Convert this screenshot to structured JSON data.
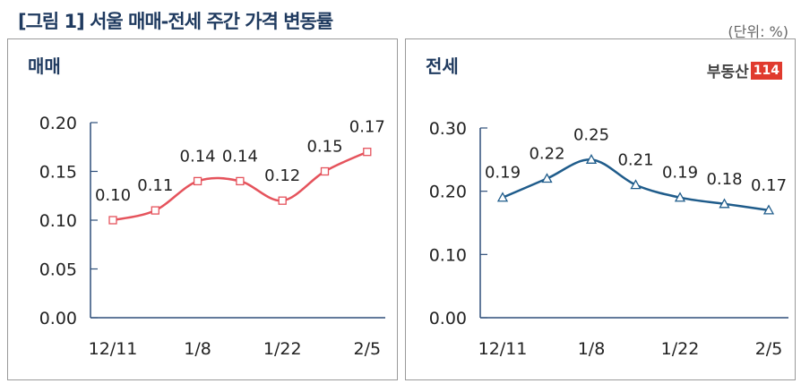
{
  "title": "[그림 1] 서울 매매-전세 주간 가격 변동률",
  "unit": "(단위: %)",
  "logo": {
    "text": "부동산",
    "number": "114"
  },
  "chart_data": [
    {
      "type": "line",
      "title": "매매",
      "x_labels": [
        "12/11",
        "",
        "1/8",
        "",
        "1/22",
        "",
        "2/5"
      ],
      "values": [
        0.1,
        0.11,
        0.14,
        0.14,
        0.12,
        0.15,
        0.17
      ],
      "data_labels": [
        "0.10",
        "0.11",
        "0.14",
        "0.14",
        "0.12",
        "0.15",
        "0.17"
      ],
      "yticks": [
        "0.00",
        "0.05",
        "0.10",
        "0.15",
        "0.20"
      ],
      "ylim": [
        0,
        0.2
      ],
      "color": "#e5535c",
      "marker": "square"
    },
    {
      "type": "line",
      "title": "전세",
      "x_labels": [
        "12/11",
        "",
        "1/8",
        "",
        "1/22",
        "",
        "2/5"
      ],
      "values": [
        0.19,
        0.22,
        0.25,
        0.21,
        0.19,
        0.18,
        0.17
      ],
      "data_labels": [
        "0.19",
        "0.22",
        "0.25",
        "0.21",
        "0.19",
        "0.18",
        "0.17"
      ],
      "yticks": [
        "0.00",
        "0.10",
        "0.20",
        "0.30"
      ],
      "ylim": [
        0,
        0.3
      ],
      "color": "#1f5c8b",
      "marker": "triangle"
    }
  ]
}
